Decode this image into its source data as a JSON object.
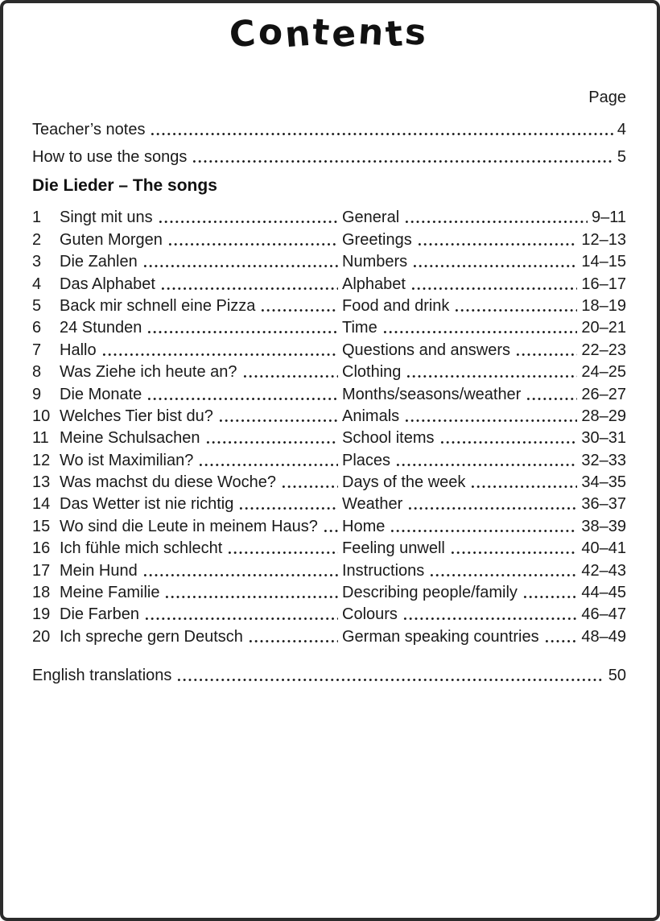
{
  "page": {
    "title": "Contents",
    "page_column_label": "Page",
    "front_items": [
      {
        "label": "Teacher’s notes",
        "page": "4"
      },
      {
        "label": "How to use the songs",
        "page": "5"
      }
    ],
    "section_heading": "Die Lieder – The songs",
    "songs": [
      {
        "num": "1",
        "title": "Singt mit uns",
        "topic": "General",
        "pages": "9–11"
      },
      {
        "num": "2",
        "title": "Guten Morgen",
        "topic": "Greetings",
        "pages": "12–13"
      },
      {
        "num": "3",
        "title": "Die Zahlen",
        "topic": "Numbers",
        "pages": "14–15"
      },
      {
        "num": "4",
        "title": "Das Alphabet",
        "topic": "Alphabet",
        "pages": "16–17"
      },
      {
        "num": "5",
        "title": "Back mir schnell eine Pizza",
        "topic": "Food and drink",
        "pages": "18–19"
      },
      {
        "num": "6",
        "title": "24 Stunden",
        "topic": "Time",
        "pages": "20–21"
      },
      {
        "num": "7",
        "title": "Hallo",
        "topic": "Questions and answers",
        "pages": "22–23"
      },
      {
        "num": "8",
        "title": "Was Ziehe ich heute an?",
        "topic": "Clothing",
        "pages": "24–25"
      },
      {
        "num": "9",
        "title": "Die Monate",
        "topic": "Months/seasons/weather",
        "pages": "26–27"
      },
      {
        "num": "10",
        "title": "Welches Tier bist du?",
        "topic": "Animals",
        "pages": "28–29"
      },
      {
        "num": "11",
        "title": "Meine Schulsachen",
        "topic": "School items",
        "pages": "30–31"
      },
      {
        "num": "12",
        "title": "Wo ist Maximilian?",
        "topic": "Places",
        "pages": "32–33"
      },
      {
        "num": "13",
        "title": "Was machst du diese Woche?",
        "topic": "Days of the week",
        "pages": "34–35"
      },
      {
        "num": "14",
        "title": "Das Wetter ist nie richtig",
        "topic": "Weather",
        "pages": "36–37"
      },
      {
        "num": "15",
        "title": "Wo sind die Leute in meinem Haus?",
        "topic": "Home",
        "pages": "38–39"
      },
      {
        "num": "16",
        "title": "Ich fühle mich schlecht",
        "topic": "Feeling unwell",
        "pages": "40–41"
      },
      {
        "num": "17",
        "title": "Mein Hund",
        "topic": "Instructions",
        "pages": "42–43"
      },
      {
        "num": "18",
        "title": "Meine Familie",
        "topic": "Describing people/family",
        "pages": "44–45"
      },
      {
        "num": "19",
        "title": "Die Farben",
        "topic": "Colours",
        "pages": "46–47"
      },
      {
        "num": "20",
        "title": "Ich spreche gern Deutsch",
        "topic": "German speaking countries",
        "pages": "48–49"
      }
    ],
    "back_items": [
      {
        "label": "English translations",
        "page": "50"
      }
    ],
    "colors": {
      "text": "#1a1a1a",
      "border": "#2b2b2b",
      "background": "#ffffff"
    }
  }
}
